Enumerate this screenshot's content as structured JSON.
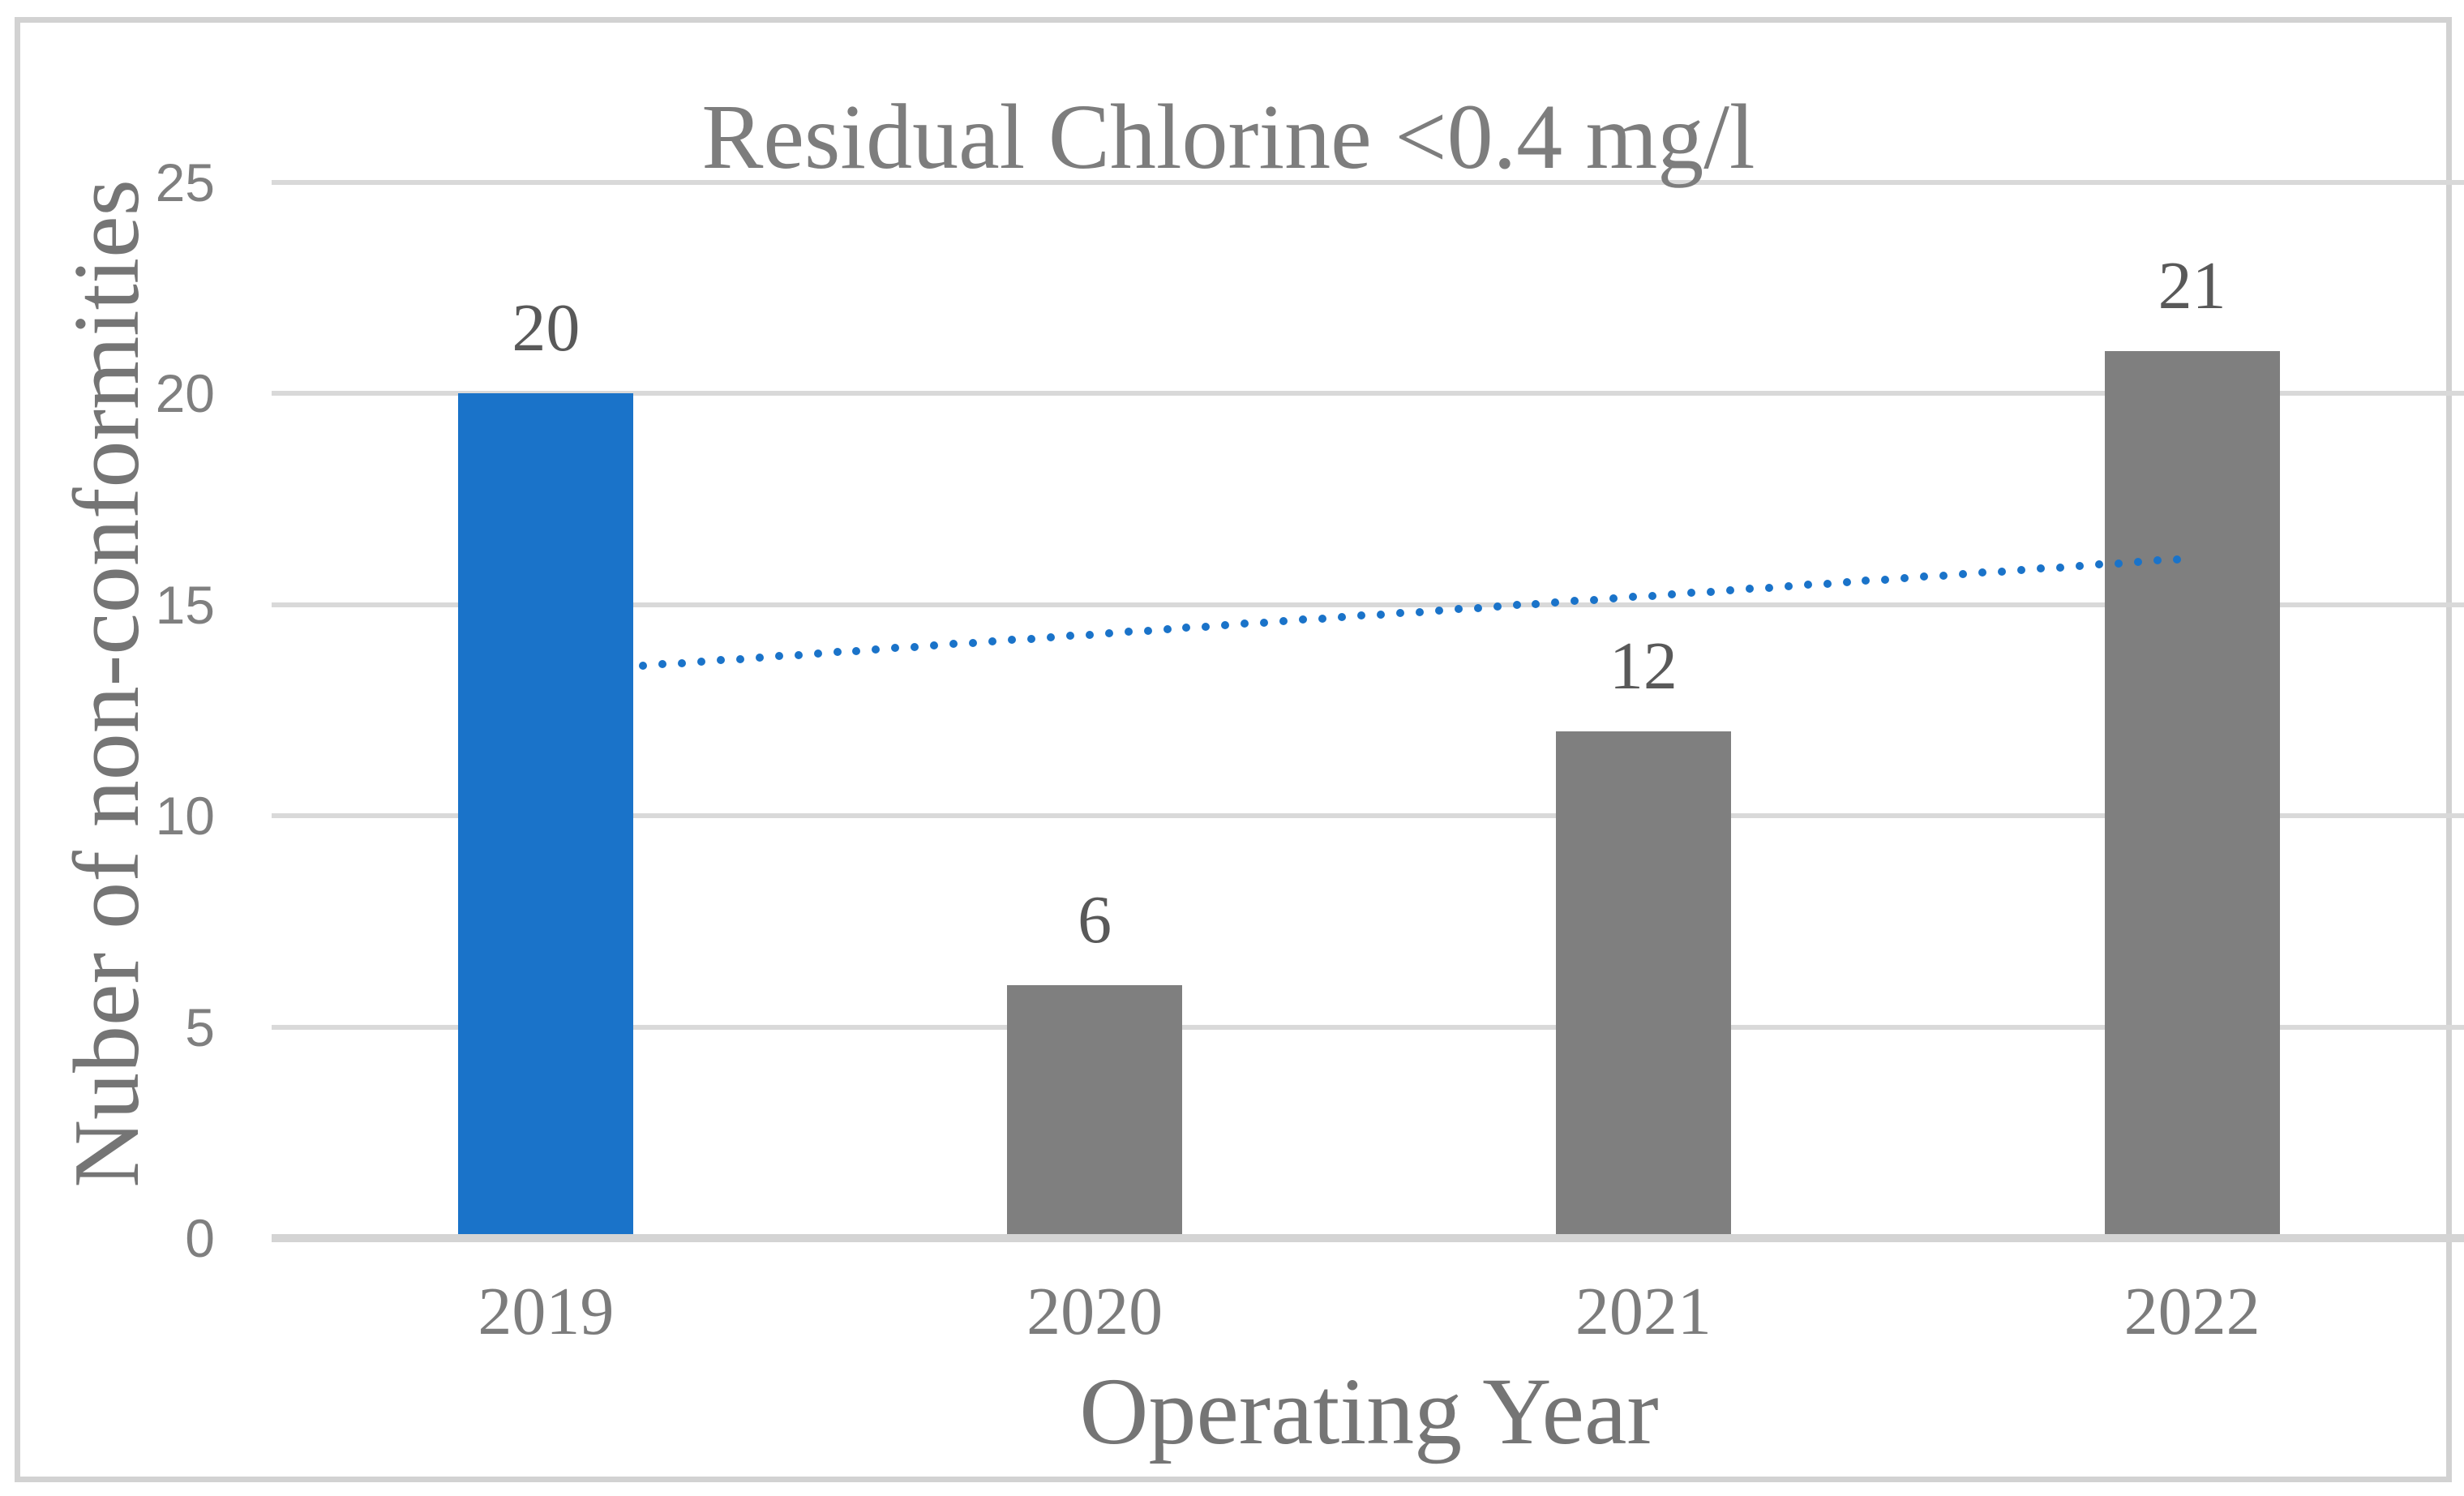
{
  "chart_data": {
    "type": "bar",
    "title": "Residual Chlorine <0.4 mg/l",
    "xlabel": "Operating Year",
    "ylabel": "Nuber of non-conformities",
    "categories": [
      "2019",
      "2020",
      "2021",
      "2022"
    ],
    "values": [
      20,
      6,
      12,
      21
    ],
    "data_labels": [
      "20",
      "6",
      "12",
      "21"
    ],
    "yticks": [
      0,
      5,
      10,
      15,
      20,
      25
    ],
    "ylim": [
      0,
      25
    ],
    "grid": true,
    "legend": "none",
    "bar_colors": [
      "#1a73c9",
      "#7f7f7f",
      "#7f7f7f",
      "#7f7f7f"
    ],
    "highlight_index": 0,
    "trendline": {
      "type": "linear",
      "style": "dotted",
      "color": "#1a73c9",
      "start_value": 13.4,
      "end_value": 16.1
    },
    "colors": {
      "grid": "#d9d9d9",
      "axis": "#d4d4d4",
      "title_text": "#7d7d7d",
      "tick_text": "#7c7c7c",
      "data_label_text": "#595959",
      "frame_border": "#d2d2d2",
      "highlight_bar": "#1a73c9",
      "default_bar": "#7f7f7f"
    }
  }
}
